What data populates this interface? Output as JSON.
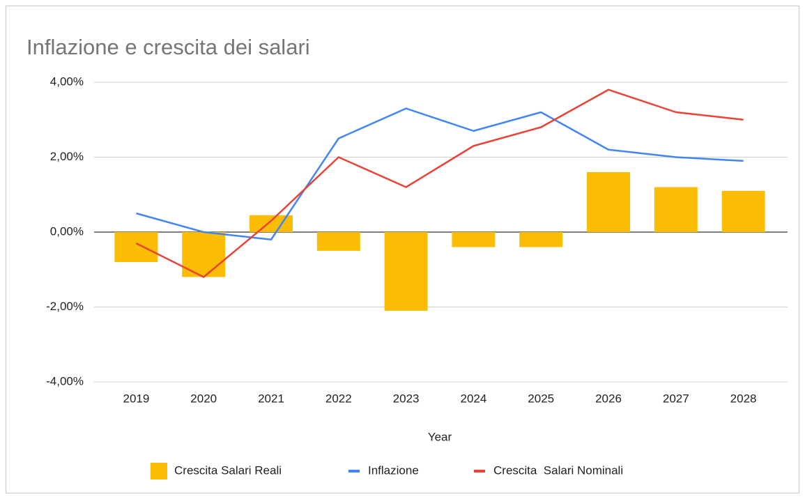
{
  "chart_data": {
    "type": "combo",
    "title": "Inflazione e crescita dei salari",
    "x_label": "Year",
    "categories": [
      "2019",
      "2020",
      "2021",
      "2022",
      "2023",
      "2024",
      "2025",
      "2026",
      "2027",
      "2028"
    ],
    "series": [
      {
        "name": "Crescita Salari Reali",
        "type": "bar",
        "color": "#fbbc04",
        "values": [
          -0.8,
          -1.2,
          0.45,
          -0.5,
          -2.1,
          -0.4,
          -0.4,
          1.6,
          1.2,
          1.1
        ]
      },
      {
        "name": "Inflazione",
        "type": "line",
        "color": "#4285f4",
        "values": [
          0.5,
          0,
          -0.2,
          2.5,
          3.3,
          2.7,
          3.2,
          2.2,
          2.0,
          1.9
        ]
      },
      {
        "name": "Crescita  Salari Nominali",
        "type": "line",
        "color": "#ea4335",
        "values": [
          -0.3,
          -1.2,
          0.3,
          2.0,
          1.2,
          2.3,
          2.8,
          3.8,
          3.2,
          3.0
        ]
      }
    ],
    "ylim": [
      -4,
      4
    ],
    "yticks": [
      {
        "value": 4,
        "label": "4,00%"
      },
      {
        "value": 2,
        "label": "2,00%"
      },
      {
        "value": 0,
        "label": "0,00%"
      },
      {
        "value": -2,
        "label": "-2,00%"
      },
      {
        "value": -4,
        "label": "-4,00%"
      }
    ],
    "grid": true,
    "legend": "bottom"
  }
}
